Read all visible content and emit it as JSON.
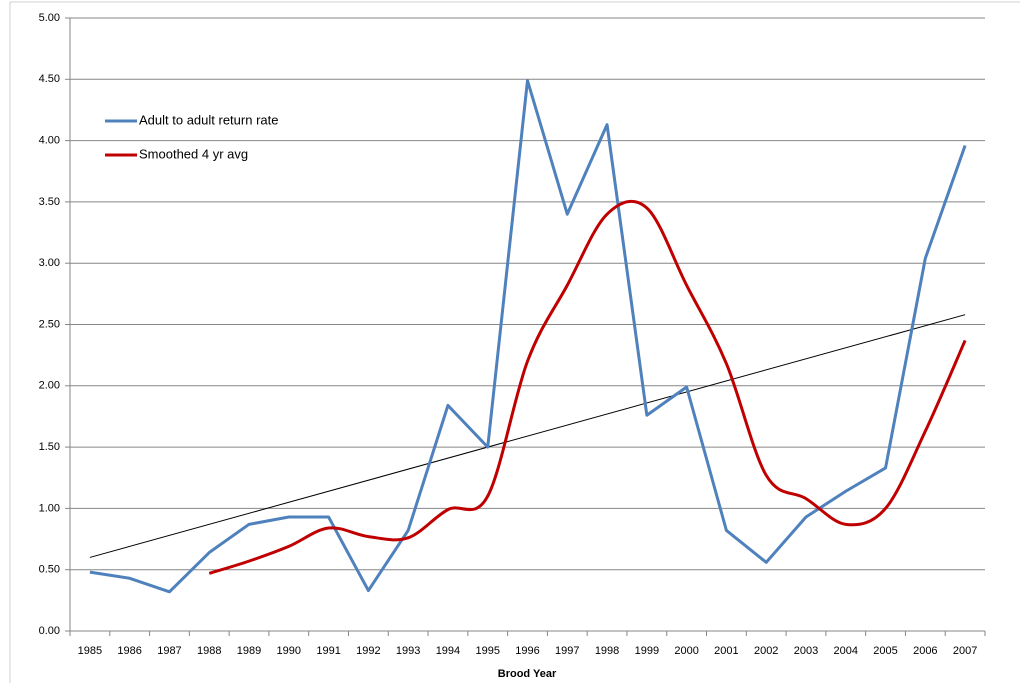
{
  "chart_data": {
    "type": "line",
    "x_label": "Brood Year",
    "categories": [
      "1985",
      "1986",
      "1987",
      "1988",
      "1989",
      "1990",
      "1991",
      "1992",
      "1993",
      "1994",
      "1995",
      "1996",
      "1997",
      "1998",
      "1999",
      "2000",
      "2001",
      "2002",
      "2003",
      "2004",
      "2005",
      "2006",
      "2007"
    ],
    "series": [
      {
        "name": "Adult to adult return rate",
        "color": "#4f81bd",
        "smooth": false,
        "values": [
          0.48,
          0.43,
          0.32,
          0.64,
          0.87,
          0.93,
          0.93,
          0.33,
          0.82,
          1.84,
          1.5,
          4.49,
          3.4,
          4.13,
          1.76,
          1.99,
          0.82,
          0.56,
          0.93,
          1.14,
          1.33,
          3.04,
          3.96
        ]
      },
      {
        "name": "Smoothed 4 yr avg",
        "color": "#c00000",
        "smooth": true,
        "values": [
          null,
          null,
          null,
          0.47,
          0.57,
          0.69,
          0.84,
          0.77,
          0.76,
          0.99,
          1.1,
          2.2,
          2.82,
          3.4,
          3.45,
          2.82,
          2.18,
          1.27,
          1.08,
          0.87,
          1.0,
          1.63,
          2.37
        ]
      }
    ],
    "trendline": {
      "start": 0.6,
      "end": 2.58,
      "color": "#000000"
    },
    "ylim": [
      0,
      5
    ],
    "yticks": [
      {
        "value": 0,
        "label": "0.00"
      },
      {
        "value": 0.5,
        "label": "0.50"
      },
      {
        "value": 1,
        "label": "1.00"
      },
      {
        "value": 1.5,
        "label": "1.50"
      },
      {
        "value": 2,
        "label": "2.00"
      },
      {
        "value": 2.5,
        "label": "2.50"
      },
      {
        "value": 3,
        "label": "3.00"
      },
      {
        "value": 3.5,
        "label": "3.50"
      },
      {
        "value": 4,
        "label": "4.00"
      },
      {
        "value": 4.5,
        "label": "4.50"
      },
      {
        "value": 5,
        "label": "5.00"
      }
    ],
    "grid": true,
    "legend": "top-left"
  }
}
